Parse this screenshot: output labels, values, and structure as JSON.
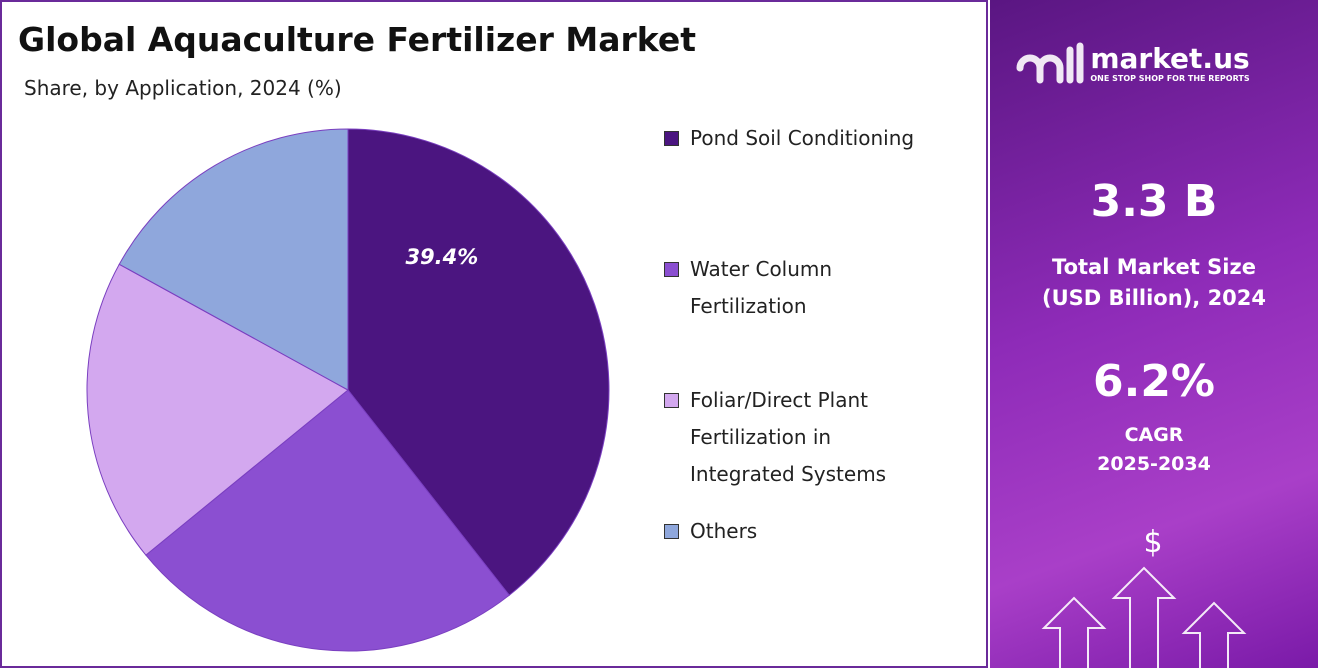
{
  "chart_data": {
    "type": "pie",
    "title": "Global Aquaculture Fertilizer Market",
    "subtitle": "Share, by Application, 2024 (%)",
    "categories": [
      "Pond Soil Conditioning",
      "Water Column Fertilization",
      "Foliar/Direct Plant Fertilization in Integrated Systems",
      "Others"
    ],
    "values": [
      39.4,
      24.7,
      18.9,
      17.0
    ],
    "value_labels": [
      "39.4%",
      null,
      null,
      null
    ],
    "colors": [
      "#4b1580",
      "#8b4fd1",
      "#d3a8ef",
      "#8fa7dc"
    ],
    "legend": "right"
  },
  "panel": {
    "brand": "market.us",
    "tagline": "ONE STOP SHOP FOR THE REPORTS",
    "market_size": "3.3 B",
    "market_size_label": "Total Market Size (USD Billion), 2024",
    "cagr": "6.2%",
    "cagr_label": "CAGR",
    "cagr_period": "2025-2034"
  }
}
